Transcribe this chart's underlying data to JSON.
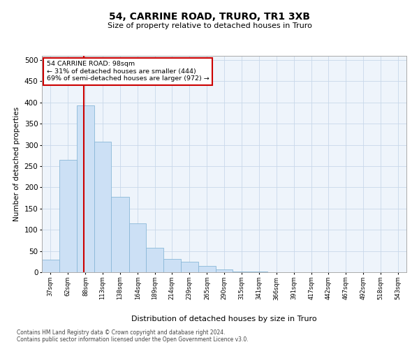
{
  "title": "54, CARRINE ROAD, TRURO, TR1 3XB",
  "subtitle": "Size of property relative to detached houses in Truro",
  "xlabel": "Distribution of detached houses by size in Truro",
  "ylabel": "Number of detached properties",
  "footnote1": "Contains HM Land Registry data © Crown copyright and database right 2024.",
  "footnote2": "Contains public sector information licensed under the Open Government Licence v3.0.",
  "bar_color": "#cce0f5",
  "bar_edge_color": "#8ab8d8",
  "grid_color": "#c8d8ea",
  "property_line_color": "#cc0000",
  "annotation_text": "54 CARRINE ROAD: 98sqm\n← 31% of detached houses are smaller (444)\n69% of semi-detached houses are larger (972) →",
  "annotation_box_color": "#ffffff",
  "annotation_box_edge": "#cc0000",
  "property_size": 98,
  "categories": [
    "37sqm",
    "62sqm",
    "88sqm",
    "113sqm",
    "138sqm",
    "164sqm",
    "189sqm",
    "214sqm",
    "239sqm",
    "265sqm",
    "290sqm",
    "315sqm",
    "341sqm",
    "366sqm",
    "391sqm",
    "417sqm",
    "442sqm",
    "467sqm",
    "492sqm",
    "518sqm",
    "543sqm"
  ],
  "bar_left_edges": [
    37,
    62,
    88,
    113,
    138,
    164,
    189,
    214,
    239,
    265,
    290,
    315,
    341,
    366,
    391,
    417,
    442,
    467,
    492,
    518,
    543
  ],
  "bar_widths": [
    25,
    26,
    25,
    25,
    26,
    25,
    25,
    25,
    26,
    25,
    25,
    26,
    25,
    25,
    26,
    25,
    25,
    25,
    26,
    25,
    25
  ],
  "bar_heights": [
    30,
    265,
    393,
    307,
    178,
    115,
    58,
    32,
    25,
    14,
    6,
    2,
    1,
    0,
    0,
    0,
    0,
    0,
    0,
    0,
    0
  ],
  "ylim": [
    0,
    510
  ],
  "yticks": [
    0,
    50,
    100,
    150,
    200,
    250,
    300,
    350,
    400,
    450,
    500
  ],
  "xlim_left": 37,
  "xlim_right": 568,
  "background_color": "#eef4fb",
  "fig_bg": "#ffffff",
  "title_fontsize": 10,
  "subtitle_fontsize": 8,
  "ylabel_fontsize": 7.5,
  "xlabel_fontsize": 8,
  "ytick_fontsize": 7.5,
  "xtick_fontsize": 6,
  "footnote_fontsize": 5.5
}
